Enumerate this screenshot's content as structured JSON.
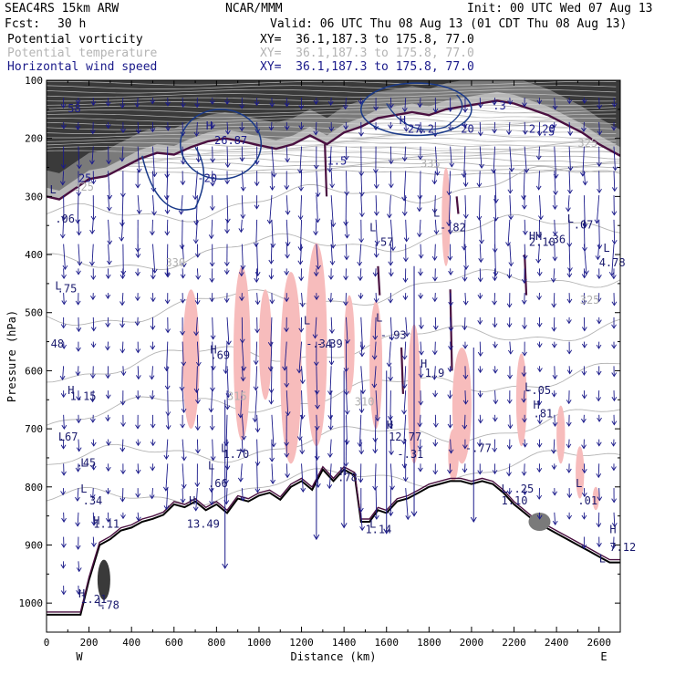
{
  "header": {
    "model": "SEAC4RS 15km ARW",
    "org": "NCAR/MMM",
    "init": "Init: 00 UTC Wed 07 Aug 13",
    "fcst_label": "Fcst:",
    "fcst_value": "30 h",
    "valid": "Valid: 06 UTC Thu 08 Aug 13 (01 CDT Thu 08 Aug 13)"
  },
  "fields": [
    {
      "name": "Potential vorticity",
      "xy": "XY=  36.1,187.3 to 175.8, 77.0",
      "color": "#000000"
    },
    {
      "name": "Potential temperature",
      "xy": "XY=  36.1,187.3 to 175.8, 77.0",
      "color": "#b4b4b4"
    },
    {
      "name": "Horizontal wind speed",
      "xy": "XY=  36.1,187.3 to 175.8, 77.0",
      "color": "#1a1a8a"
    }
  ],
  "colors": {
    "pv_fill_dark": "#3a3a3a",
    "pv_fill_mid": "#7a7a7a",
    "pv_fill_light": "#b8b8b8",
    "pv_contour": "#4a1040",
    "negative_pv": "#f7bcbc",
    "theta": "#b4b4b4",
    "wind_contour": "#1a3a8a",
    "wind_vector": "#1a1a8a",
    "terrain": "#000000"
  },
  "chart_data": {
    "type": "cross-section",
    "xlabel": "Distance (km)",
    "ylabel": "Pressure (hPa)",
    "xlim": [
      0,
      2700
    ],
    "ylim": [
      1050,
      100
    ],
    "x_ticks": [
      0,
      200,
      400,
      600,
      800,
      1000,
      1200,
      1400,
      1600,
      1800,
      2000,
      2200,
      2400,
      2600
    ],
    "y_ticks": [
      100,
      200,
      300,
      400,
      500,
      600,
      700,
      800,
      900,
      1000
    ],
    "y_scale": "linear",
    "left_end": "W",
    "right_end": "E",
    "terrain_profile": [
      [
        0,
        1020
      ],
      [
        160,
        1020
      ],
      [
        200,
        960
      ],
      [
        250,
        900
      ],
      [
        300,
        890
      ],
      [
        350,
        875
      ],
      [
        400,
        870
      ],
      [
        450,
        860
      ],
      [
        500,
        855
      ],
      [
        550,
        848
      ],
      [
        600,
        830
      ],
      [
        650,
        835
      ],
      [
        700,
        825
      ],
      [
        750,
        840
      ],
      [
        800,
        830
      ],
      [
        850,
        845
      ],
      [
        900,
        820
      ],
      [
        950,
        825
      ],
      [
        1000,
        815
      ],
      [
        1050,
        810
      ],
      [
        1100,
        822
      ],
      [
        1150,
        800
      ],
      [
        1200,
        790
      ],
      [
        1250,
        805
      ],
      [
        1300,
        770
      ],
      [
        1350,
        790
      ],
      [
        1400,
        770
      ],
      [
        1450,
        780
      ],
      [
        1480,
        860
      ],
      [
        1520,
        860
      ],
      [
        1560,
        840
      ],
      [
        1600,
        845
      ],
      [
        1650,
        825
      ],
      [
        1700,
        820
      ],
      [
        1750,
        810
      ],
      [
        1800,
        800
      ],
      [
        1850,
        795
      ],
      [
        1900,
        790
      ],
      [
        1950,
        790
      ],
      [
        2000,
        795
      ],
      [
        2050,
        790
      ],
      [
        2100,
        795
      ],
      [
        2150,
        810
      ],
      [
        2200,
        830
      ],
      [
        2250,
        845
      ],
      [
        2300,
        860
      ],
      [
        2350,
        870
      ],
      [
        2400,
        880
      ],
      [
        2450,
        890
      ],
      [
        2500,
        900
      ],
      [
        2550,
        910
      ],
      [
        2600,
        920
      ],
      [
        2650,
        930
      ],
      [
        2700,
        930
      ]
    ],
    "tropopause_pv": [
      [
        0,
        300
      ],
      [
        60,
        305
      ],
      [
        120,
        290
      ],
      [
        200,
        270
      ],
      [
        280,
        265
      ],
      [
        360,
        250
      ],
      [
        440,
        235
      ],
      [
        520,
        225
      ],
      [
        600,
        228
      ],
      [
        680,
        215
      ],
      [
        760,
        205
      ],
      [
        840,
        200
      ],
      [
        920,
        205
      ],
      [
        1000,
        212
      ],
      [
        1080,
        218
      ],
      [
        1160,
        210
      ],
      [
        1240,
        195
      ],
      [
        1320,
        210
      ],
      [
        1400,
        190
      ],
      [
        1480,
        180
      ],
      [
        1560,
        165
      ],
      [
        1640,
        160
      ],
      [
        1720,
        155
      ],
      [
        1800,
        160
      ],
      [
        1880,
        150
      ],
      [
        1960,
        145
      ],
      [
        2040,
        140
      ],
      [
        2120,
        135
      ],
      [
        2200,
        140
      ],
      [
        2280,
        150
      ],
      [
        2360,
        160
      ],
      [
        2440,
        175
      ],
      [
        2520,
        190
      ],
      [
        2600,
        210
      ],
      [
        2700,
        230
      ]
    ],
    "theta_levels_labels": [
      {
        "text": "325",
        "x": 130,
        "p": 290
      },
      {
        "text": "330",
        "x": 560,
        "p": 420
      },
      {
        "text": "335",
        "x": 1760,
        "p": 250
      },
      {
        "text": "325",
        "x": 2500,
        "p": 215
      },
      {
        "text": "325",
        "x": 2510,
        "p": 485
      },
      {
        "text": "315",
        "x": 850,
        "p": 650
      },
      {
        "text": "310",
        "x": 1450,
        "p": 660
      }
    ],
    "pv_labels": [
      {
        "text": "L",
        "x": 15,
        "p": 295
      },
      {
        "text": ".06",
        "x": 40,
        "p": 345
      },
      {
        "text": "L",
        "x": 40,
        "p": 460
      },
      {
        "text": ".75",
        "x": 50,
        "p": 465
      },
      {
        "text": "48",
        "x": 20,
        "p": 560
      },
      {
        "text": "H",
        "x": 100,
        "p": 640
      },
      {
        "text": "1.15",
        "x": 110,
        "p": 650
      },
      {
        "text": "L",
        "x": 55,
        "p": 720
      },
      {
        "text": ".67",
        "x": 55,
        "p": 720
      },
      {
        "text": "L",
        "x": 160,
        "p": 765
      },
      {
        "text": ".45",
        "x": 140,
        "p": 765
      },
      {
        "text": "L",
        "x": 160,
        "p": 810
      },
      {
        "text": ".34",
        "x": 170,
        "p": 830
      },
      {
        "text": "H",
        "x": 220,
        "p": 865
      },
      {
        "text": "1.11",
        "x": 220,
        "p": 870
      },
      {
        "text": "H",
        "x": 150,
        "p": 990
      },
      {
        "text": "1.21",
        "x": 160,
        "p": 1000
      },
      {
        "text": "L",
        "x": 240,
        "p": 1005
      },
      {
        "text": ".78",
        "x": 250,
        "p": 1010
      },
      {
        "text": "H",
        "x": 770,
        "p": 570
      },
      {
        "text": ".69",
        "x": 770,
        "p": 580
      },
      {
        "text": "L",
        "x": 760,
        "p": 770
      },
      {
        "text": ".66",
        "x": 760,
        "p": 800
      },
      {
        "text": "L",
        "x": 820,
        "p": 740
      },
      {
        "text": "1.70",
        "x": 830,
        "p": 750
      },
      {
        "text": "H",
        "x": 670,
        "p": 830
      },
      {
        "text": "13.49",
        "x": 660,
        "p": 870
      },
      {
        "text": "L",
        "x": 1210,
        "p": 520
      },
      {
        "text": "-.34",
        "x": 1220,
        "p": 560
      },
      {
        "text": "-.39",
        "x": 1270,
        "p": 560
      },
      {
        "text": "L",
        "x": 1550,
        "p": 515
      },
      {
        "text": "-.93",
        "x": 1570,
        "p": 545
      },
      {
        "text": "H",
        "x": 1760,
        "p": 595
      },
      {
        "text": "1.9",
        "x": 1780,
        "p": 610
      },
      {
        "text": "H",
        "x": 1600,
        "p": 700
      },
      {
        "text": "12.77",
        "x": 1610,
        "p": 720
      },
      {
        "text": "-.31",
        "x": 1650,
        "p": 750
      },
      {
        "text": "-.77",
        "x": 1970,
        "p": 740
      },
      {
        "text": "L",
        "x": 2250,
        "p": 635
      },
      {
        "text": "-.05",
        "x": 2250,
        "p": 640
      },
      {
        "text": "H",
        "x": 2290,
        "p": 665
      },
      {
        "text": ".81",
        "x": 2290,
        "p": 680
      },
      {
        "text": "L",
        "x": 2140,
        "p": 810
      },
      {
        "text": "1.10",
        "x": 2140,
        "p": 830
      },
      {
        "text": ".25",
        "x": 2200,
        "p": 810
      },
      {
        "text": "L",
        "x": 2490,
        "p": 800
      },
      {
        "text": ".01",
        "x": 2500,
        "p": 830
      },
      {
        "text": "L",
        "x": 1520,
        "p": 360
      },
      {
        "text": ".57",
        "x": 1540,
        "p": 385
      },
      {
        "text": "L",
        "x": 1820,
        "p": 335
      },
      {
        "text": "-.82",
        "x": 1850,
        "p": 360
      },
      {
        "text": "HH",
        "x": 2270,
        "p": 375
      },
      {
        "text": "2.10",
        "x": 2270,
        "p": 385
      },
      {
        "text": ".36",
        "x": 2350,
        "p": 380
      },
      {
        "text": "L",
        "x": 2450,
        "p": 345
      },
      {
        "text": ".07",
        "x": 2480,
        "p": 355
      },
      {
        "text": "L",
        "x": 2620,
        "p": 395
      },
      {
        "text": "4.78",
        "x": 2600,
        "p": 420
      },
      {
        "text": "L",
        "x": 2600,
        "p": 930
      },
      {
        "text": "7.12",
        "x": 2650,
        "p": 910
      },
      {
        "text": "H",
        "x": 2650,
        "p": 880
      },
      {
        "text": "H",
        "x": 1380,
        "p": 780
      },
      {
        "text": ".78",
        "x": 1370,
        "p": 790
      },
      {
        "text": "L",
        "x": 1520,
        "p": 870
      },
      {
        "text": "1.14",
        "x": 1500,
        "p": 880
      }
    ],
    "ws_labels": [
      {
        "text": "H",
        "x": 750,
        "p": 185
      },
      {
        "text": "26.87",
        "x": 790,
        "p": 210
      },
      {
        "text": "-20",
        "x": 710,
        "p": 275
      },
      {
        "text": "H",
        "x": 1660,
        "p": 175
      },
      {
        "text": "27.2",
        "x": 1700,
        "p": 190
      },
      {
        "text": "20",
        "x": 1950,
        "p": 190
      },
      {
        "text": "1.5",
        "x": 1320,
        "p": 245
      },
      {
        "text": "2.20",
        "x": 2270,
        "p": 190
      },
      {
        "text": ".5",
        "x": 2330,
        "p": 195
      },
      {
        "text": ".3",
        "x": 2100,
        "p": 150
      },
      {
        "text": "58",
        "x": 100,
        "p": 155
      },
      {
        "text": "25",
        "x": 150,
        "p": 275
      }
    ],
    "neg_pv_blobs": [
      [
        640,
        460,
        720,
        700
      ],
      [
        880,
        420,
        960,
        720
      ],
      [
        1000,
        460,
        1060,
        650
      ],
      [
        1100,
        430,
        1200,
        760
      ],
      [
        1220,
        380,
        1320,
        730
      ],
      [
        1400,
        470,
        1450,
        640
      ],
      [
        1520,
        480,
        1580,
        700
      ],
      [
        1700,
        520,
        1760,
        760
      ],
      [
        1860,
        250,
        1900,
        420
      ],
      [
        1910,
        560,
        2000,
        760
      ],
      [
        2210,
        570,
        2260,
        730
      ],
      [
        2400,
        660,
        2440,
        760
      ],
      [
        2490,
        730,
        2530,
        820
      ],
      [
        2570,
        800,
        2600,
        840
      ],
      [
        1890,
        700,
        1940,
        790
      ]
    ],
    "wind_max_contours": [
      {
        "cx": 820,
        "cp": 210,
        "rx": 190,
        "rp": 60
      },
      {
        "cx": 1740,
        "cp": 150,
        "rx": 260,
        "rp": 45
      }
    ],
    "vector_columns": [
      80,
      150,
      220,
      290,
      360,
      430,
      500,
      570,
      640,
      710,
      780,
      850,
      920,
      990,
      1060,
      1130,
      1200,
      1270,
      1340,
      1410,
      1480,
      1550,
      1620,
      1690,
      1760,
      1830,
      1900,
      1970,
      2040,
      2110,
      2180,
      2250,
      2320,
      2390,
      2460,
      2530,
      2600,
      2670
    ]
  }
}
